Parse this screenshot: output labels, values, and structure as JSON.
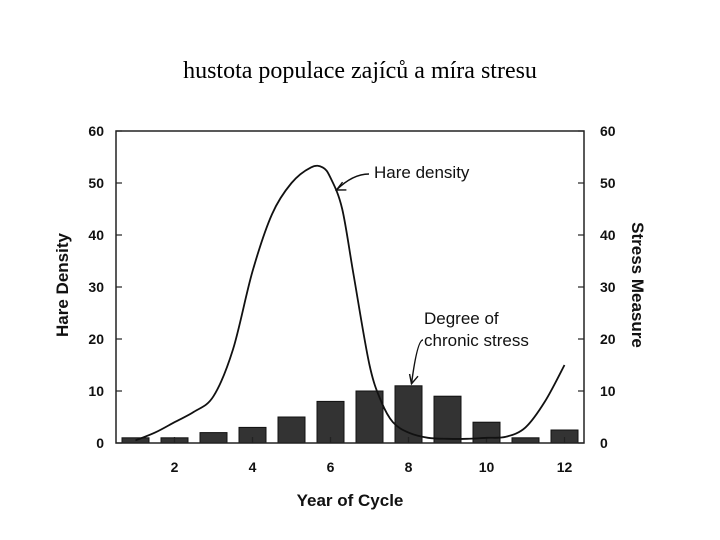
{
  "slide": {
    "title": "hustota populace zajíců a míra stresu"
  },
  "chart_data": {
    "type": "bar+line",
    "xlabel": "Year of Cycle",
    "ylabel_left": "Hare Density",
    "ylabel_right": "Stress Measure",
    "xlim": [
      0.5,
      12.5
    ],
    "ylim": [
      0,
      60
    ],
    "x_ticks": [
      2,
      4,
      6,
      8,
      10,
      12
    ],
    "y_ticks": [
      0,
      10,
      20,
      30,
      40,
      50,
      60
    ],
    "y_ticks_right": [
      0,
      10,
      20,
      30,
      40,
      50,
      60
    ],
    "bars": {
      "name": "Degree of chronic stress",
      "x": [
        1,
        2,
        3,
        4,
        5,
        6,
        7,
        8,
        9,
        10,
        11,
        12
      ],
      "values": [
        1,
        1,
        2,
        3,
        5,
        8,
        10,
        11,
        9,
        4,
        1,
        2.5
      ]
    },
    "line": {
      "name": "Hare density",
      "x": [
        1,
        1.5,
        2,
        2.5,
        3,
        3.5,
        4,
        4.5,
        5,
        5.5,
        5.8,
        6,
        6.3,
        6.6,
        7,
        7.3,
        7.6,
        8,
        8.5,
        9,
        9.5,
        10,
        10.5,
        11,
        11.5,
        12
      ],
      "values": [
        0.5,
        2,
        4,
        6,
        9,
        18,
        33,
        44,
        50,
        53,
        53,
        51,
        45,
        32,
        15,
        8,
        4,
        2,
        1,
        0.8,
        0.8,
        1,
        1.2,
        3,
        8,
        15
      ]
    },
    "annotations": [
      {
        "lines": [
          "Hare density"
        ],
        "target": "line",
        "target_x": 6.1
      },
      {
        "lines": [
          "Degree of",
          "chronic stress"
        ],
        "target": "bars",
        "target_x": 8
      }
    ]
  }
}
